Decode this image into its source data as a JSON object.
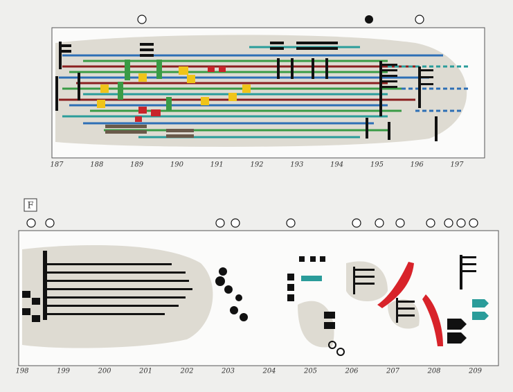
{
  "top_panel": {
    "measures": [
      "187",
      "188",
      "189",
      "190",
      "191",
      "192",
      "193",
      "194",
      "195",
      "196",
      "197"
    ]
  },
  "bottom_panel": {
    "section_label": "F",
    "measures": [
      "198",
      "199",
      "200",
      "201",
      "202",
      "203",
      "204",
      "205",
      "206",
      "207",
      "208",
      "209"
    ]
  }
}
